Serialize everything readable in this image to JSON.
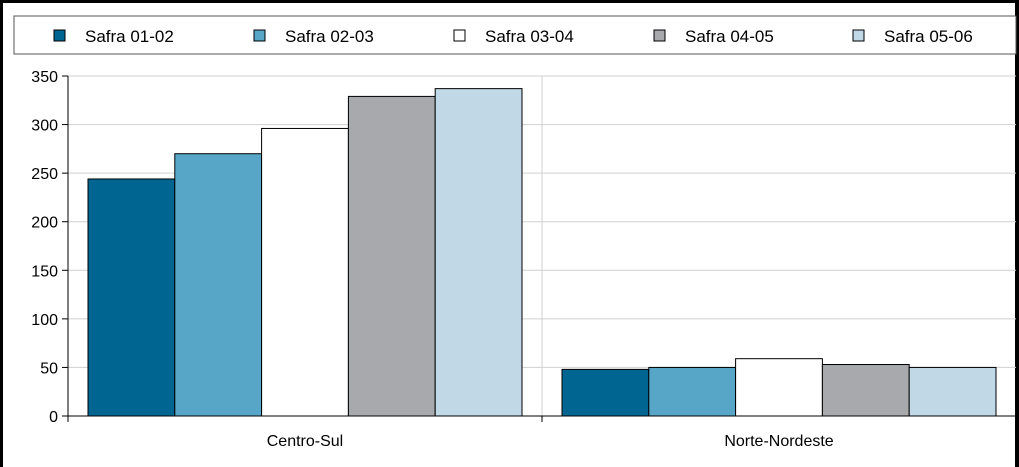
{
  "chart_data": {
    "type": "bar",
    "title": "",
    "xlabel": "",
    "ylabel": "",
    "categories": [
      "Centro-Sul",
      "Norte-Nordeste"
    ],
    "ylim": [
      0,
      350
    ],
    "yticks": [
      0,
      50,
      100,
      150,
      200,
      250,
      300,
      350
    ],
    "grid": true,
    "legend_position": "top",
    "series": [
      {
        "name": "Safra 01-02",
        "color": "#006591",
        "values": [
          244,
          48
        ]
      },
      {
        "name": "Safra 02-03",
        "color": "#58a6c7",
        "values": [
          270,
          50
        ]
      },
      {
        "name": "Safra 03-04",
        "color": "#ffffff",
        "values": [
          296,
          59
        ]
      },
      {
        "name": "Safra 04-05",
        "color": "#a7a9ac",
        "values": [
          329,
          53
        ]
      },
      {
        "name": "Safra 05-06",
        "color": "#c1d9e6",
        "values": [
          337,
          50
        ]
      }
    ]
  }
}
